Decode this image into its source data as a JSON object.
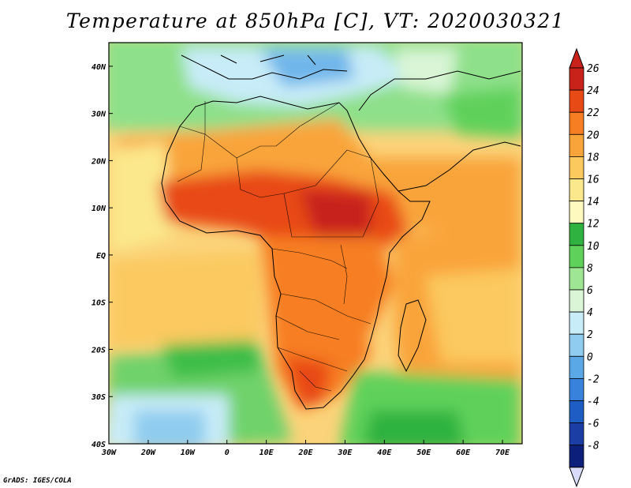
{
  "title": "Temperature at 850hPa [C], VT: 2020030321",
  "credit": "GrADS: IGES/COLA",
  "map": {
    "lon_range": [
      -30,
      75
    ],
    "lat_range": [
      -40,
      45
    ],
    "lon_ticks": [
      {
        "value": -30,
        "label": "30W"
      },
      {
        "value": -20,
        "label": "20W"
      },
      {
        "value": -10,
        "label": "10W"
      },
      {
        "value": 0,
        "label": "0"
      },
      {
        "value": 10,
        "label": "10E"
      },
      {
        "value": 20,
        "label": "20E"
      },
      {
        "value": 30,
        "label": "30E"
      },
      {
        "value": 40,
        "label": "40E"
      },
      {
        "value": 50,
        "label": "50E"
      },
      {
        "value": 60,
        "label": "60E"
      },
      {
        "value": 70,
        "label": "70E"
      }
    ],
    "lat_ticks": [
      {
        "value": 40,
        "label": "40N"
      },
      {
        "value": 30,
        "label": "30N"
      },
      {
        "value": 20,
        "label": "20N"
      },
      {
        "value": 10,
        "label": "10N"
      },
      {
        "value": 0,
        "label": "EQ"
      },
      {
        "value": -10,
        "label": "10S"
      },
      {
        "value": -20,
        "label": "20S"
      },
      {
        "value": -30,
        "label": "30S"
      },
      {
        "value": -40,
        "label": "40S"
      }
    ]
  },
  "colorbar": {
    "labels": [
      "26",
      "24",
      "22",
      "20",
      "18",
      "16",
      "14",
      "12",
      "10",
      "8",
      "6",
      "4",
      "2",
      "0",
      "-2",
      "-4",
      "-6",
      "-8"
    ],
    "colors": [
      "#c8221a",
      "#e84a16",
      "#f77e22",
      "#f9a43a",
      "#fbc95e",
      "#fbe88c",
      "#fdf9bf",
      "#2fb240",
      "#5ed15a",
      "#9ee594",
      "#d9f5d6",
      "#c8ecf8",
      "#8fccef",
      "#5aa8e6",
      "#3882dc",
      "#1e5ec4",
      "#1a3ea4",
      "#0c1f7a"
    ],
    "arrow_top_color": "#c8221a",
    "arrow_bottom_color": "#d8dcf8"
  }
}
